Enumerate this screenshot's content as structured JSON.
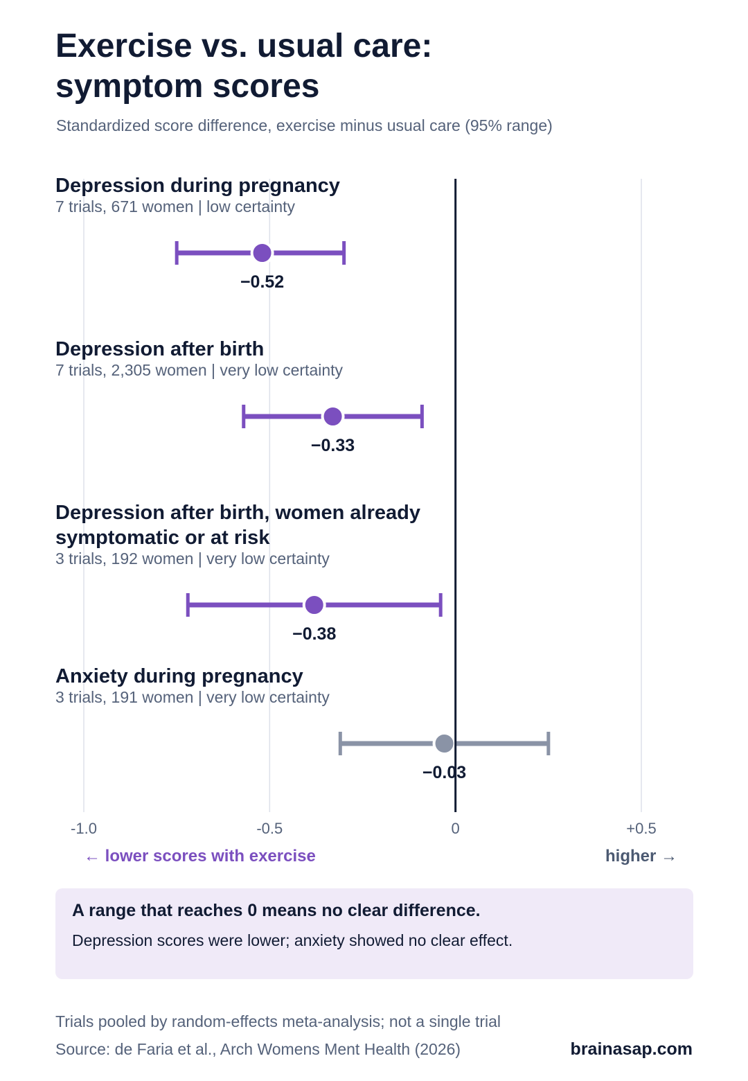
{
  "title": "Exercise vs. usual care:\nsymptom scores",
  "subtitle": "Standardized score difference, exercise minus usual care (95% range)",
  "direction": {
    "left": "← lower scores with exercise",
    "right": "higher →"
  },
  "callout": {
    "title": "A range that reaches 0 means no clear difference.",
    "text": "Depression scores were lower; anxiety showed no clear effect."
  },
  "footer": {
    "note": "Trials pooled by random-effects meta-analysis; not a single trial",
    "source": "Source: de Faria et al., Arch Womens Ment Health (2026)",
    "brand": "brainasap.com"
  },
  "colors": {
    "significant": "#7b4fbf",
    "non_significant": "#8a93a6",
    "zero_line": "#111b33",
    "grid": "#dde1ea"
  },
  "chart_data": {
    "type": "forest",
    "xlim": [
      -1.0,
      0.5
    ],
    "ticks": [
      -1.0,
      -0.5,
      0,
      0.5
    ],
    "tick_labels": [
      "-1.0",
      "-0.5",
      "0",
      "+0.5"
    ],
    "grid": true,
    "reference_line": 0,
    "rows": [
      {
        "label": "Depression during pregnancy",
        "meta": "7 trials, 671 women | low certainty",
        "estimate": -0.52,
        "lower": -0.75,
        "upper": -0.3,
        "value_label": "−0.52",
        "significant": true
      },
      {
        "label": "Depression after birth",
        "meta": "7 trials, 2,305 women | very low certainty",
        "estimate": -0.33,
        "lower": -0.57,
        "upper": -0.09,
        "value_label": "−0.33",
        "significant": true
      },
      {
        "label": "Depression after birth, women already symptomatic or at risk",
        "meta": "3 trials, 192 women | very low certainty",
        "estimate": -0.38,
        "lower": -0.72,
        "upper": -0.04,
        "value_label": "−0.38",
        "significant": true
      },
      {
        "label": "Anxiety during pregnancy",
        "meta": "3 trials, 191 women | very low certainty",
        "estimate": -0.03,
        "lower": -0.31,
        "upper": 0.25,
        "value_label": "−0.03",
        "significant": false
      }
    ]
  }
}
